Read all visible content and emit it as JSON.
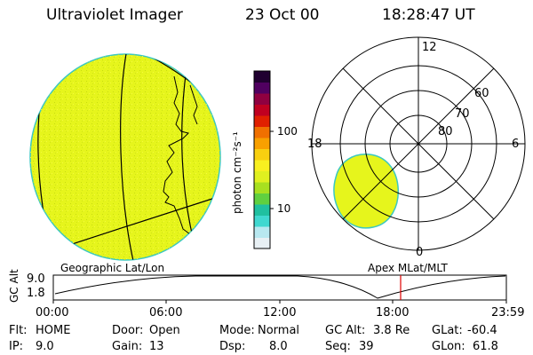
{
  "header": {
    "instrument": "Ultraviolet Imager",
    "date": "23 Oct 00",
    "time": "18:28:47 UT"
  },
  "colorbar": {
    "unit_label": "photon cm⁻²s⁻¹",
    "tick_100": "100",
    "tick_10": "10",
    "colors": [
      "#e8f0f4",
      "#b8e8f0",
      "#40d8d0",
      "#20c0a0",
      "#60d040",
      "#a8e020",
      "#e0f020",
      "#f8f020",
      "#f8d010",
      "#f8a000",
      "#f07000",
      "#e02000",
      "#c00020",
      "#900040",
      "#500060",
      "#200030"
    ]
  },
  "geo_panel": {
    "fill_color": "#e6f51c",
    "caption": "Geographic Lat/Lon"
  },
  "polar_panel": {
    "caption": "Apex MLat/MLT",
    "mlt_top": "12",
    "mlt_left": "18",
    "mlt_right": "6",
    "mlt_bottom": "0",
    "lat_60": "60",
    "lat_70": "70",
    "lat_80": "80"
  },
  "altitude_plot": {
    "ylabel": "GC Alt",
    "y_max": "9.0",
    "y_min": "1.8",
    "x_ticks": [
      "00:00",
      "06:00",
      "12:00",
      "18:00",
      "23:59"
    ],
    "current_time_marker_color": "#e00000"
  },
  "status": {
    "flt_label": "Flt:",
    "flt_value": "HOME",
    "door_label": "Door:",
    "door_value": "Open",
    "mode_label": "Mode:",
    "mode_value": "Normal",
    "gcalt_label": "GC Alt:",
    "gcalt_value": "3.8 Re",
    "glat_label": "GLat:",
    "glat_value": "-60.4",
    "ip_label": "IP:",
    "ip_value": "9.0",
    "gain_label": "Gain:",
    "gain_value": "13",
    "dsp_label": "Dsp:",
    "dsp_value": "8.0",
    "seq_label": "Seq:",
    "seq_value": "39",
    "glon_label": "GLon:",
    "glon_value": "61.8"
  }
}
